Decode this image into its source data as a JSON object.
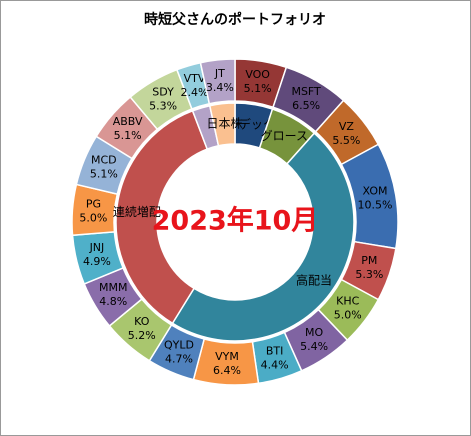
{
  "chart_data": {
    "type": "donut",
    "title": "時短父さんのポートフォリオ",
    "center_text": "2023年10月",
    "rings": [
      {
        "categories": [
          "VOO",
          "MSFT",
          "VZ",
          "XOM",
          "PM",
          "KHC",
          "MO",
          "BTI",
          "VYM",
          "QYLD",
          "KO",
          "MMM",
          "JNJ",
          "PG",
          "MCD",
          "ABBV",
          "SDY",
          "VTV",
          "JT"
        ],
        "values": [
          5.1,
          6.5,
          5.5,
          10.5,
          5.3,
          5.0,
          5.4,
          4.4,
          6.4,
          4.7,
          5.2,
          4.8,
          4.9,
          5.0,
          5.1,
          5.1,
          5.3,
          2.4,
          3.4
        ],
        "value_labels": [
          "5.1%",
          "6.5%",
          "5.5%",
          "10.5%",
          "5.3%",
          "5.0%",
          "5.4%",
          "4.4%",
          "6.4%",
          "4.7%",
          "5.2%",
          "4.8%",
          "4.9%",
          "5.0%",
          "5.1%",
          "5.1%",
          "5.3%",
          "2.4%",
          "3.4%"
        ],
        "colors": [
          "#953735",
          "#604a7b",
          "#c0692a",
          "#3a6db0",
          "#c0504d",
          "#9bbb59",
          "#8064a2",
          "#4bacc6",
          "#f79646",
          "#4f81bd",
          "#a9c66e",
          "#8a6daa",
          "#4fb0c9",
          "#f79646",
          "#95b3d7",
          "#d99694",
          "#c3d69b",
          "#93cddd",
          "#b3a2c7"
        ]
      },
      {
        "categories": [
          "インデックス",
          "グロース",
          "高配当",
          "連続増配",
          null,
          "日本株"
        ],
        "values": [
          5.1,
          6.5,
          47.2,
          35.4,
          2.4,
          3.4
        ],
        "colors": [
          "#1f497d",
          "#77933c",
          "#31859c",
          "#c0504d",
          "#b3a2c7",
          "#fac090"
        ]
      }
    ]
  }
}
